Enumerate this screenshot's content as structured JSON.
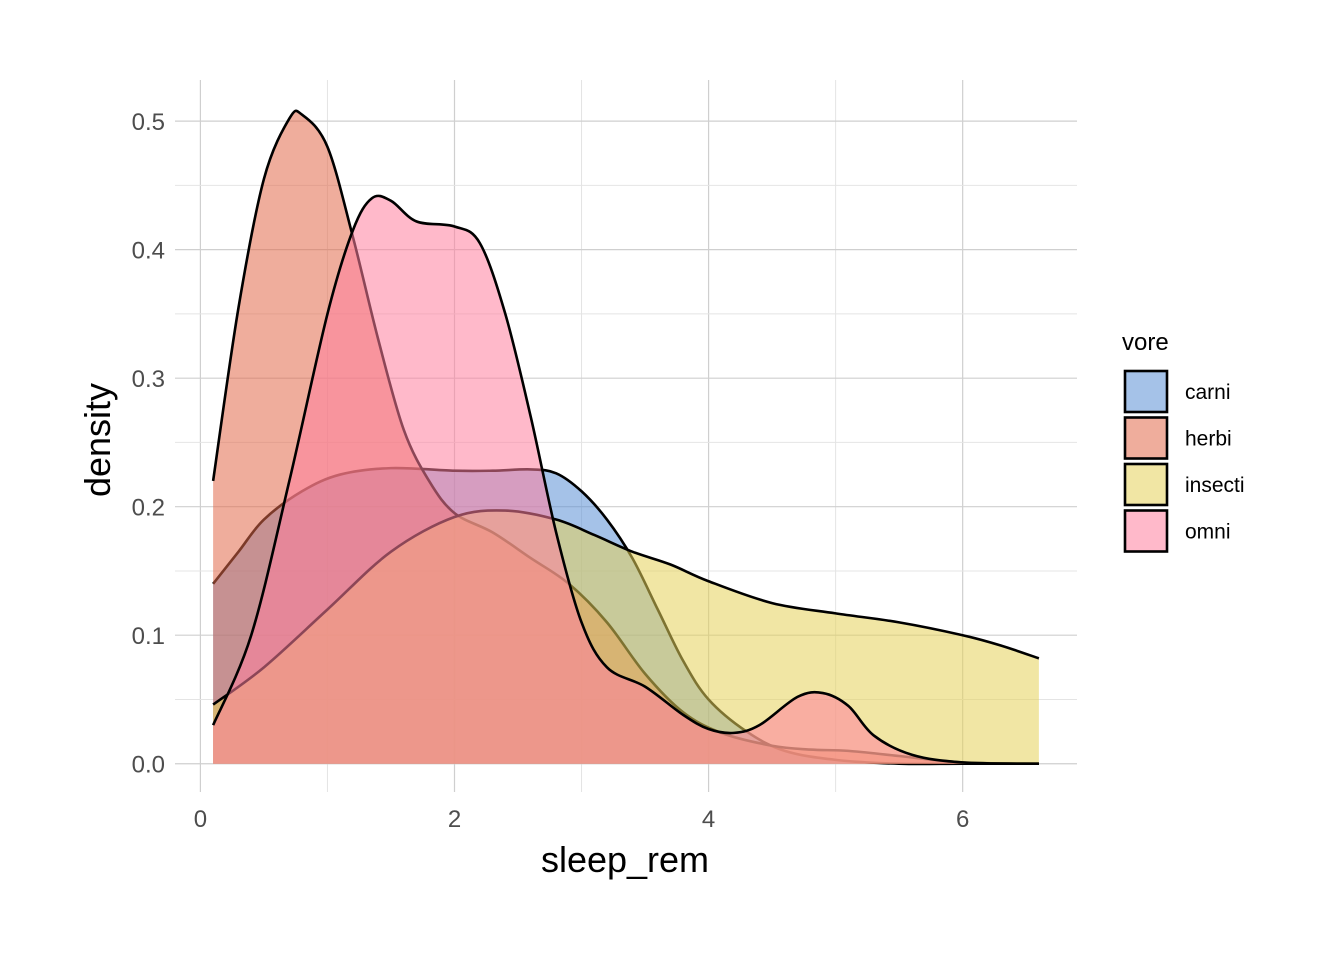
{
  "chart_data": {
    "type": "area",
    "subtype": "density",
    "title": "",
    "xlabel": "sleep_rem",
    "ylabel": "density",
    "xlim": [
      -0.2,
      6.9
    ],
    "ylim": [
      -0.022,
      0.532
    ],
    "x_ticks": [
      0,
      2,
      4,
      6
    ],
    "x_tick_labels": [
      "0",
      "2",
      "4",
      "6"
    ],
    "y_ticks": [
      0.0,
      0.1,
      0.2,
      0.3,
      0.4,
      0.5
    ],
    "y_tick_labels": [
      "0.0",
      "0.1",
      "0.2",
      "0.3",
      "0.4",
      "0.5"
    ],
    "grid": true,
    "legend": {
      "title": "vore",
      "position": "right"
    },
    "fill_opacity": 0.55,
    "series": [
      {
        "name": "carni",
        "color": "#5b8fd6",
        "points": [
          [
            0.1,
            0.14
          ],
          [
            0.3,
            0.165
          ],
          [
            0.5,
            0.19
          ],
          [
            0.8,
            0.212
          ],
          [
            1.1,
            0.225
          ],
          [
            1.5,
            0.23
          ],
          [
            2.0,
            0.228
          ],
          [
            2.3,
            0.228
          ],
          [
            2.6,
            0.229
          ],
          [
            2.8,
            0.226
          ],
          [
            3.0,
            0.212
          ],
          [
            3.2,
            0.19
          ],
          [
            3.4,
            0.16
          ],
          [
            3.6,
            0.12
          ],
          [
            3.8,
            0.08
          ],
          [
            4.0,
            0.05
          ],
          [
            4.3,
            0.025
          ],
          [
            4.6,
            0.01
          ],
          [
            5.0,
            0.003
          ],
          [
            5.5,
            0.0
          ],
          [
            6.0,
            0.0
          ],
          [
            6.6,
            0.0
          ]
        ]
      },
      {
        "name": "herbi",
        "color": "#e26a4a",
        "points": [
          [
            0.1,
            0.22
          ],
          [
            0.3,
            0.355
          ],
          [
            0.5,
            0.455
          ],
          [
            0.7,
            0.502
          ],
          [
            0.8,
            0.505
          ],
          [
            1.0,
            0.48
          ],
          [
            1.2,
            0.41
          ],
          [
            1.4,
            0.33
          ],
          [
            1.6,
            0.26
          ],
          [
            1.8,
            0.22
          ],
          [
            2.0,
            0.195
          ],
          [
            2.3,
            0.18
          ],
          [
            2.6,
            0.16
          ],
          [
            2.9,
            0.14
          ],
          [
            3.2,
            0.11
          ],
          [
            3.5,
            0.07
          ],
          [
            3.8,
            0.04
          ],
          [
            4.1,
            0.024
          ],
          [
            4.5,
            0.014
          ],
          [
            4.8,
            0.011
          ],
          [
            5.1,
            0.01
          ],
          [
            5.5,
            0.006
          ],
          [
            6.0,
            0.001
          ],
          [
            6.6,
            0.0
          ]
        ]
      },
      {
        "name": "insecti",
        "color": "#e6d25a",
        "points": [
          [
            0.1,
            0.046
          ],
          [
            0.5,
            0.075
          ],
          [
            1.0,
            0.12
          ],
          [
            1.5,
            0.165
          ],
          [
            2.0,
            0.192
          ],
          [
            2.4,
            0.197
          ],
          [
            2.8,
            0.19
          ],
          [
            3.1,
            0.178
          ],
          [
            3.4,
            0.165
          ],
          [
            3.7,
            0.155
          ],
          [
            4.0,
            0.142
          ],
          [
            4.5,
            0.125
          ],
          [
            5.0,
            0.117
          ],
          [
            5.5,
            0.11
          ],
          [
            6.0,
            0.1
          ],
          [
            6.3,
            0.092
          ],
          [
            6.6,
            0.082
          ]
        ]
      },
      {
        "name": "omni",
        "color": "#ff7f9e",
        "points": [
          [
            0.1,
            0.03
          ],
          [
            0.4,
            0.1
          ],
          [
            0.7,
            0.22
          ],
          [
            1.0,
            0.35
          ],
          [
            1.2,
            0.415
          ],
          [
            1.35,
            0.44
          ],
          [
            1.5,
            0.438
          ],
          [
            1.7,
            0.422
          ],
          [
            2.0,
            0.418
          ],
          [
            2.2,
            0.405
          ],
          [
            2.4,
            0.35
          ],
          [
            2.6,
            0.27
          ],
          [
            2.8,
            0.18
          ],
          [
            3.0,
            0.11
          ],
          [
            3.2,
            0.075
          ],
          [
            3.5,
            0.06
          ],
          [
            3.8,
            0.038
          ],
          [
            4.0,
            0.027
          ],
          [
            4.2,
            0.024
          ],
          [
            4.4,
            0.03
          ],
          [
            4.7,
            0.052
          ],
          [
            4.9,
            0.055
          ],
          [
            5.1,
            0.045
          ],
          [
            5.3,
            0.022
          ],
          [
            5.6,
            0.007
          ],
          [
            6.0,
            0.001
          ],
          [
            6.6,
            0.0
          ]
        ]
      }
    ]
  }
}
